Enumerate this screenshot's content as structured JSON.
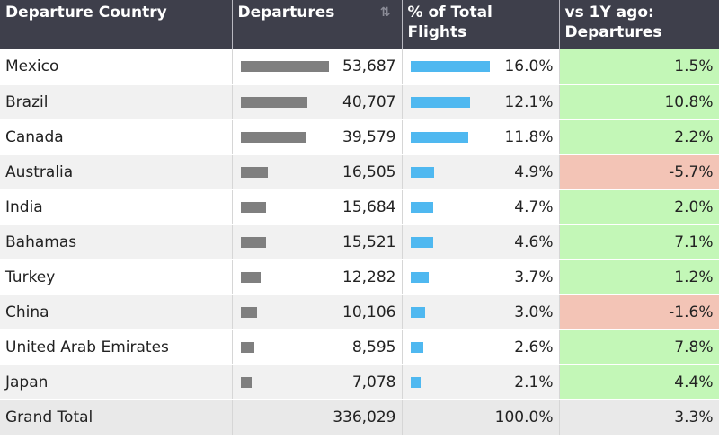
{
  "header": {
    "country": "Departure Country",
    "departures": "Departures",
    "pct_line1": "% of Total",
    "pct_line2": "Flights",
    "yoy_line1": "vs 1Y ago:",
    "yoy_line2": "Departures",
    "sort_icon": "sort-descending-icon"
  },
  "colors": {
    "header_bg": "#3e3f4b",
    "bar_grey": "#7f7f7f",
    "bar_blue": "#4fb8f0",
    "positive": "#c3f7b7",
    "negative": "#f3c4b6"
  },
  "rows": [
    {
      "country": "Mexico",
      "departures": "53,687",
      "dep_value": 53687,
      "pct": "16.0%",
      "pct_value": 16.0,
      "yoy": "1.5%",
      "yoy_value": 1.5
    },
    {
      "country": "Brazil",
      "departures": "40,707",
      "dep_value": 40707,
      "pct": "12.1%",
      "pct_value": 12.1,
      "yoy": "10.8%",
      "yoy_value": 10.8
    },
    {
      "country": "Canada",
      "departures": "39,579",
      "dep_value": 39579,
      "pct": "11.8%",
      "pct_value": 11.8,
      "yoy": "2.2%",
      "yoy_value": 2.2
    },
    {
      "country": "Australia",
      "departures": "16,505",
      "dep_value": 16505,
      "pct": "4.9%",
      "pct_value": 4.9,
      "yoy": "-5.7%",
      "yoy_value": -5.7
    },
    {
      "country": "India",
      "departures": "15,684",
      "dep_value": 15684,
      "pct": "4.7%",
      "pct_value": 4.7,
      "yoy": "2.0%",
      "yoy_value": 2.0
    },
    {
      "country": "Bahamas",
      "departures": "15,521",
      "dep_value": 15521,
      "pct": "4.6%",
      "pct_value": 4.6,
      "yoy": "7.1%",
      "yoy_value": 7.1
    },
    {
      "country": "Turkey",
      "departures": "12,282",
      "dep_value": 12282,
      "pct": "3.7%",
      "pct_value": 3.7,
      "yoy": "1.2%",
      "yoy_value": 1.2
    },
    {
      "country": "China",
      "departures": "10,106",
      "dep_value": 10106,
      "pct": "3.0%",
      "pct_value": 3.0,
      "yoy": "-1.6%",
      "yoy_value": -1.6
    },
    {
      "country": "United Arab Emirates",
      "departures": "8,595",
      "dep_value": 8595,
      "pct": "2.6%",
      "pct_value": 2.6,
      "yoy": "7.8%",
      "yoy_value": 7.8
    },
    {
      "country": "Japan",
      "departures": "7,078",
      "dep_value": 7078,
      "pct": "2.1%",
      "pct_value": 2.1,
      "yoy": "4.4%",
      "yoy_value": 4.4
    }
  ],
  "total": {
    "label": "Grand Total",
    "departures": "336,029",
    "pct": "100.0%",
    "yoy": "3.3%"
  }
}
